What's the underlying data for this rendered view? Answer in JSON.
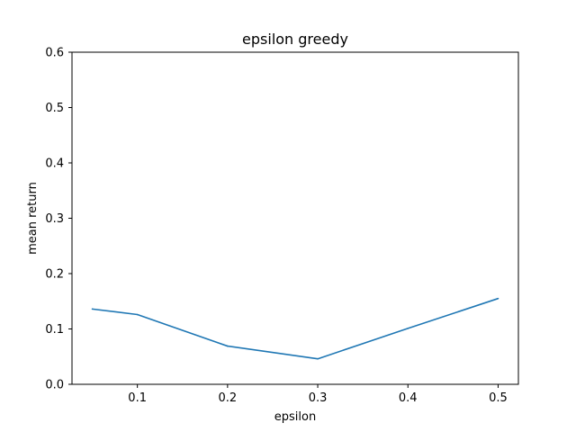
{
  "chart_data": {
    "type": "line",
    "title": "epsilon greedy",
    "xlabel": "epsilon",
    "ylabel": "mean return",
    "x": [
      0.05,
      0.1,
      0.2,
      0.3,
      0.4,
      0.5
    ],
    "series": [
      {
        "values": [
          0.136,
          0.126,
          0.069,
          0.046,
          0.101,
          0.155
        ],
        "color": "#1f77b4"
      }
    ],
    "xlim": [
      0.0275,
      0.5225
    ],
    "ylim": [
      0.0,
      0.6
    ],
    "xticks": [
      0.1,
      0.2,
      0.3,
      0.4,
      0.5
    ],
    "xtick_labels": [
      "0.1",
      "0.2",
      "0.3",
      "0.4",
      "0.5"
    ],
    "yticks": [
      0.0,
      0.1,
      0.2,
      0.3,
      0.4,
      0.5,
      0.6
    ],
    "ytick_labels": [
      "0.0",
      "0.1",
      "0.2",
      "0.3",
      "0.4",
      "0.5",
      "0.6"
    ],
    "grid": false,
    "legend": "none"
  }
}
